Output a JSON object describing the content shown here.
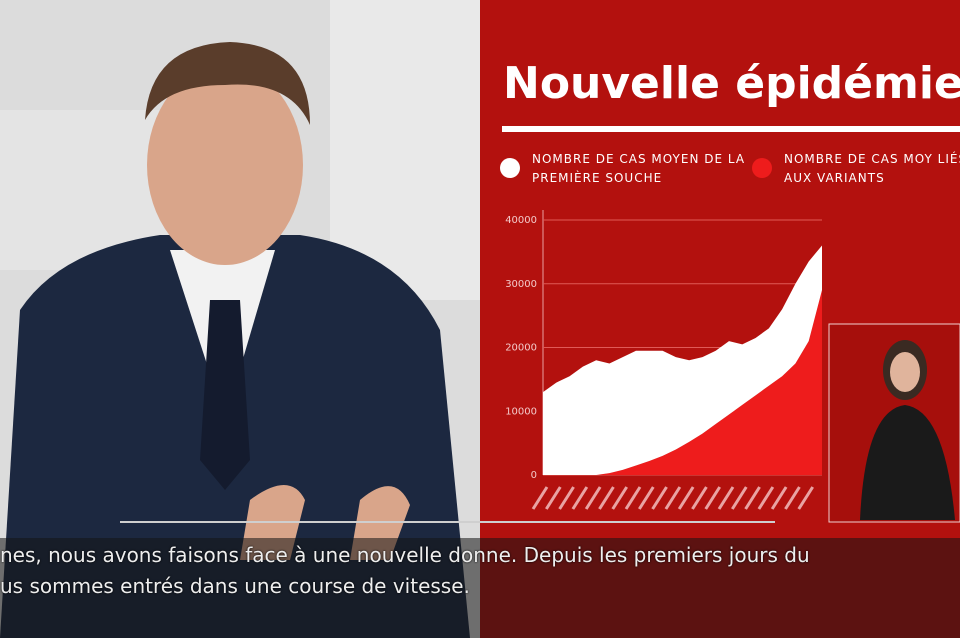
{
  "chart_data": {
    "type": "stacked-area",
    "title": "Nouvelle épidémie",
    "categories": [
      null,
      null,
      null,
      null,
      null,
      null,
      null,
      null,
      null,
      null,
      null,
      null,
      null,
      null,
      null,
      null,
      null,
      null,
      null,
      null,
      null,
      null
    ],
    "series": [
      {
        "name": "NOMBRE DE CAS MOY LIÉS AUX VARIANTS",
        "color": "#ee1c1c",
        "values": [
          0,
          0,
          0,
          0,
          0,
          300,
          800,
          1500,
          2200,
          3000,
          4000,
          5200,
          6500,
          8000,
          9500,
          11000,
          12500,
          14000,
          15500,
          17500,
          21000,
          29000
        ]
      },
      {
        "name": "NOMBRE DE CAS MOYEN DE LA PREMIÈRE SOUCHE",
        "color": "#ffffff",
        "values": [
          13000,
          14500,
          15500,
          17000,
          18000,
          17200,
          17700,
          18000,
          17300,
          16500,
          14500,
          12800,
          12000,
          11500,
          11500,
          9500,
          9000,
          9000,
          10500,
          12500,
          12500,
          7000
        ]
      }
    ],
    "ylim": [
      0,
      40000
    ],
    "yticks": [
      0,
      10000,
      20000,
      30000,
      40000
    ],
    "grid": true
  },
  "subtitles": [
    "nes, nous avons faisons face à une nouvelle donne. Depuis les premiers jours du",
    "us sommes entrés dans une course de vitesse."
  ]
}
